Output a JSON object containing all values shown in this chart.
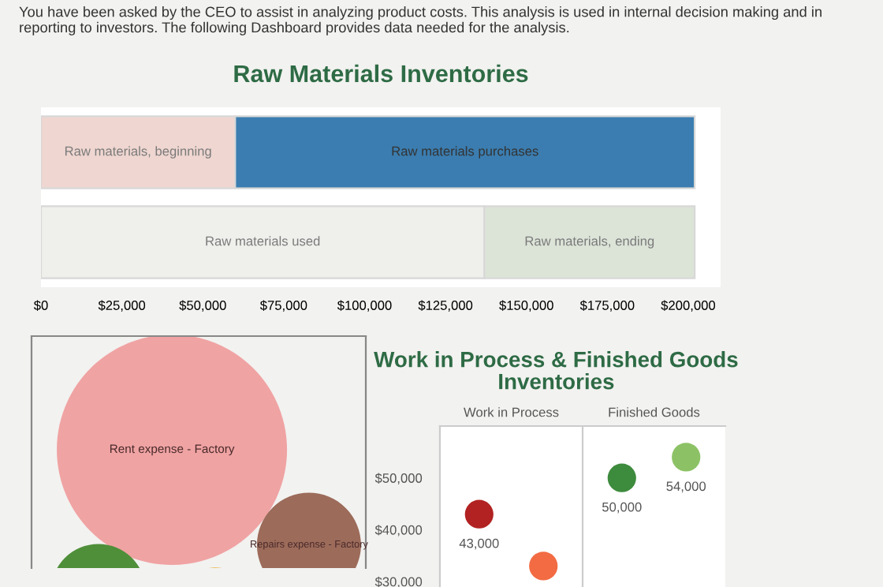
{
  "chart_data": [
    {
      "type": "bar",
      "orientation": "horizontal",
      "stacked": true,
      "title": "Raw Materials Inventories",
      "annotations": [
        "You have been asked by the CEO to assist in analyzing product costs. This analysis is used in internal decision making and in reporting to investors. The following Dashboard provides data needed for the analysis."
      ],
      "categories": [
        null,
        null
      ],
      "series": [
        {
          "name": "Raw materials, beginning",
          "color": "#efd6d0",
          "values": [
            60000,
            null
          ]
        },
        {
          "name": "Raw materials purchases",
          "color": "#3b7db0",
          "values": [
            142000,
            null
          ]
        },
        {
          "name": "Raw materials used",
          "color": "#efefec",
          "values": [
            null,
            137000
          ]
        },
        {
          "name": "Raw materials, ending",
          "color": "#dce4d8",
          "values": [
            null,
            65000
          ]
        }
      ],
      "xlim": [
        0,
        210000
      ],
      "xticks": [
        {
          "value": 0,
          "label": "$0"
        },
        {
          "value": 25000,
          "label": "$25,000"
        },
        {
          "value": 50000,
          "label": "$50,000"
        },
        {
          "value": 75000,
          "label": "$75,000"
        },
        {
          "value": 100000,
          "label": "$100,000"
        },
        {
          "value": 125000,
          "label": "$125,000"
        },
        {
          "value": 150000,
          "label": "$150,000"
        },
        {
          "value": 175000,
          "label": "$175,000"
        },
        {
          "value": 200000,
          "label": "$200,000"
        }
      ],
      "grid": false,
      "legend": false
    },
    {
      "type": "other",
      "annotations": [
        "Rent expense - Factory",
        "Repairs expense - Factory"
      ],
      "colors": [
        "#f0a3a3",
        "#9c6b5a",
        "#4f8f3a",
        "#e8b040"
      ]
    },
    {
      "type": "scatter",
      "title": "Work in Process & Finished Goods\nInventories",
      "categories": [
        "Work in Process",
        "Finished Goods"
      ],
      "series": [
        {
          "colors": [
            "#b22222",
            "#3d8b3d"
          ],
          "values": [
            43000,
            50000
          ],
          "value_labels": [
            "43,000",
            "50,000"
          ]
        },
        {
          "colors": [
            "#f26b43",
            "#8cc265"
          ],
          "values": [
            33000,
            54000
          ],
          "value_labels": [
            null,
            "54,000"
          ]
        }
      ],
      "ylim": [
        25000,
        60000
      ],
      "yticks": [
        {
          "value": 30000,
          "label": "$30,000"
        },
        {
          "value": 40000,
          "label": "$40,000"
        },
        {
          "value": 50000,
          "label": "$50,000"
        }
      ],
      "grid": false,
      "marker": "circle"
    }
  ]
}
